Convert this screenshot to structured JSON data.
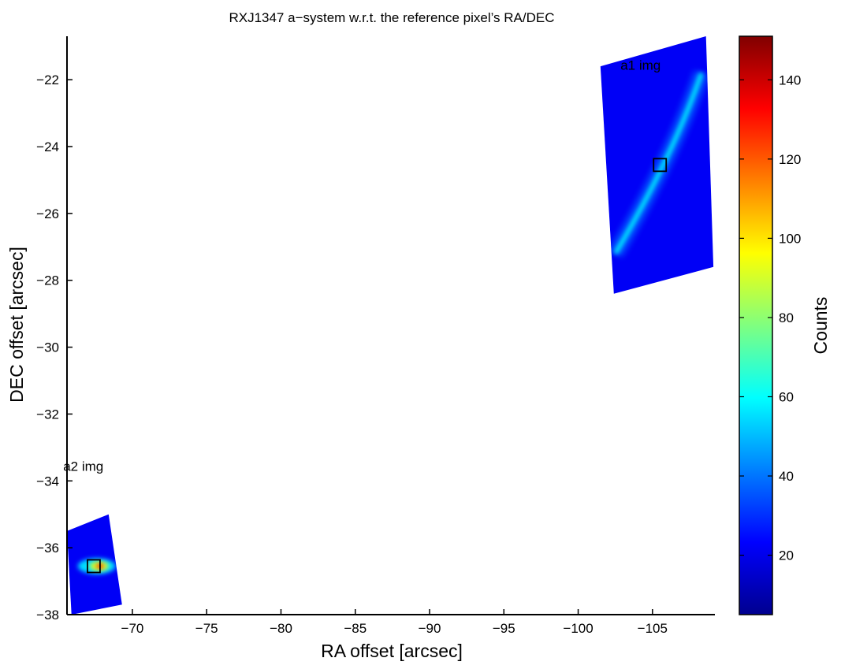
{
  "chart_data": {
    "type": "heatmap",
    "title": "RXJ1347 a−system w.r.t. the reference pixel’s RA/DEC",
    "xlabel": "RA offset [arcsec]",
    "ylabel": "DEC offset [arcsec]",
    "xlim": [
      -65.6,
      -109.2
    ],
    "ylim": [
      -38.0,
      -20.7
    ],
    "x_ticks": [
      -70,
      -75,
      -80,
      -85,
      -90,
      -95,
      -100,
      -105
    ],
    "x_tick_labels": [
      "−70",
      "−75",
      "−80",
      "−85",
      "−90",
      "−95",
      "−100",
      "−105"
    ],
    "y_ticks": [
      -22,
      -24,
      -26,
      -28,
      -30,
      -32,
      -34,
      -36,
      -38
    ],
    "y_tick_labels": [
      "−22",
      "−24",
      "−26",
      "−28",
      "−30",
      "−32",
      "−34",
      "−36",
      "−38"
    ],
    "grid": false,
    "colorbar": {
      "label": "Counts",
      "min": 5,
      "max": 151,
      "ticks": [
        20,
        40,
        60,
        80,
        100,
        120,
        140
      ],
      "tick_labels": [
        "20",
        "40",
        "60",
        "80",
        "100",
        "120",
        "140"
      ],
      "colormap": "jet"
    },
    "images": [
      {
        "label": "a1 img",
        "corners": [
          [
            -101.5,
            -21.6
          ],
          [
            -108.6,
            -20.7
          ],
          [
            -109.1,
            -27.6
          ],
          [
            -102.4,
            -28.4
          ]
        ],
        "background_counts": 22,
        "feature": {
          "shape": "arc",
          "from": [
            -102.5,
            -27.2
          ],
          "to": [
            -108.3,
            -21.8
          ],
          "peak_counts": 60
        },
        "marker": {
          "ra": -105.5,
          "dec": -24.55
        }
      },
      {
        "label": "a2 img",
        "corners": [
          [
            -65.6,
            -35.5
          ],
          [
            -68.4,
            -35.0
          ],
          [
            -69.3,
            -37.7
          ],
          [
            -65.9,
            -38.0
          ]
        ],
        "background_counts": 22,
        "feature": {
          "shape": "blob",
          "center": [
            -67.6,
            -36.55
          ],
          "peak_counts": 125
        },
        "marker": {
          "ra": -67.4,
          "dec": -36.55
        }
      }
    ]
  }
}
